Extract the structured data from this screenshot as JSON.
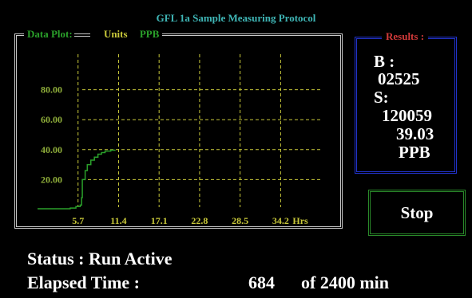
{
  "window": {
    "title": "GFL 1a Sample Measuring Protocol"
  },
  "plot": {
    "label": "Data Plot:",
    "units_label": "Units",
    "units_value": "PPB"
  },
  "chart_data": {
    "type": "line",
    "x_ticks": [
      "5.7",
      "11.4",
      "17.1",
      "22.8",
      "28.5",
      "34.2"
    ],
    "x_unit": "Hrs",
    "y_ticks": [
      "80.00",
      "60.00",
      "40.00",
      "20.00"
    ],
    "xlim": [
      0,
      40
    ],
    "ylim": [
      0,
      100
    ],
    "grid": true,
    "series": [
      {
        "points": [
          [
            0,
            0.5
          ],
          [
            4.6,
            1.0
          ],
          [
            5.4,
            2.0
          ],
          [
            6.0,
            3.0
          ],
          [
            6.2,
            8.0
          ],
          [
            6.3,
            20.0
          ],
          [
            6.7,
            26.0
          ],
          [
            7.0,
            30.0
          ],
          [
            7.5,
            33.0
          ],
          [
            8.0,
            35.0
          ],
          [
            8.5,
            37.0
          ],
          [
            9.0,
            38.0
          ],
          [
            9.5,
            39.0
          ],
          [
            10.3,
            39.6
          ],
          [
            10.9,
            39.8
          ]
        ]
      }
    ],
    "colors": {
      "grid": "#c9c93a",
      "line": "#2aa02a",
      "axis_labels": "#c9c93a",
      "y_labels": "#8fae3a"
    }
  },
  "results": {
    "title": "Results :",
    "b_label": "B :",
    "b_value": "02525",
    "s_label": "S:",
    "s_value": "120059",
    "concentration": "39.03",
    "unit": "PPB"
  },
  "controls": {
    "stop_label": "Stop"
  },
  "status": {
    "label": "Status : Run Active",
    "elapsed_label": "Elapsed   Time :",
    "elapsed_value": "684",
    "total": "of 2400 min"
  }
}
